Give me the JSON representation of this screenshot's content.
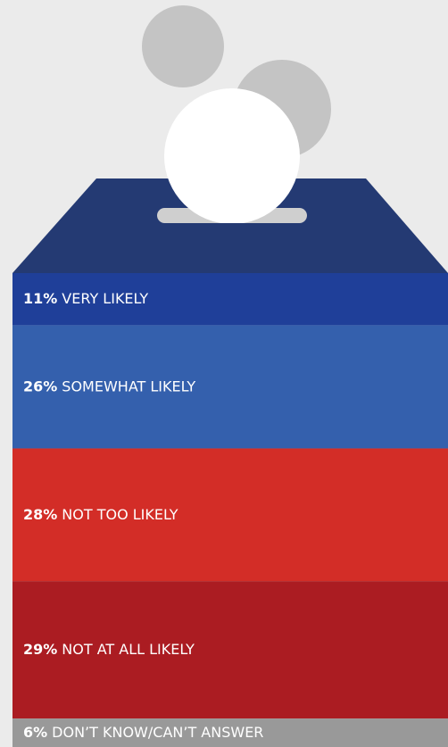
{
  "chart_data": {
    "type": "stacked-bar",
    "categories": [
      "VERY LIKELY",
      "SOMEWHAT LIKELY",
      "NOT TOO LIKELY",
      "NOT AT ALL LIKELY",
      "DON’T KNOW/CAN’T ANSWER"
    ],
    "values": [
      11,
      26,
      28,
      29,
      6
    ],
    "value_labels": [
      "11%",
      "26%",
      "28%",
      "29%",
      "6%"
    ],
    "colors": [
      "#1f3f99",
      "#3460ad",
      "#d32d27",
      "#ab1c22",
      "#999999"
    ]
  }
}
